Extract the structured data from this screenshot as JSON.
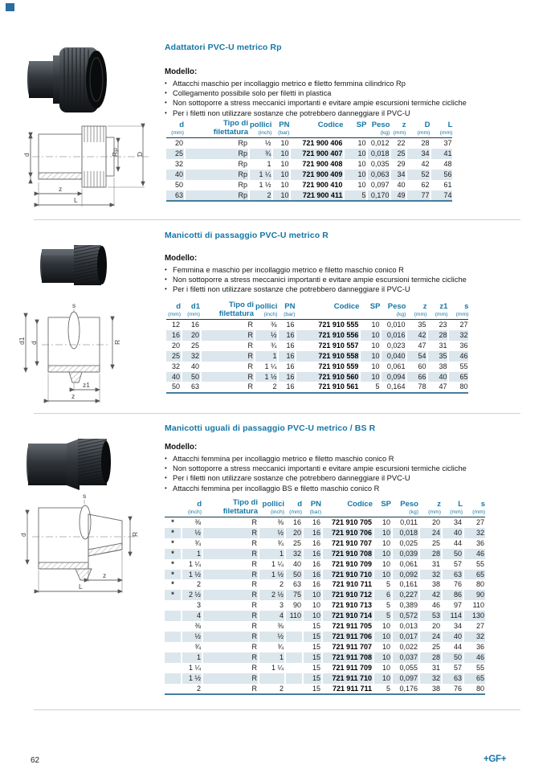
{
  "page": {
    "number": "62",
    "logo": "+GF+"
  },
  "colors": {
    "accent": "#1576a6",
    "shade": "#dce6ed",
    "rule-dark": "#16384c",
    "rule-bottom": "#447e9f",
    "divider": "#cfcfcf"
  },
  "sections": [
    {
      "title": "Adattatori PVC-U metrico Rp",
      "model_label": "Modello:",
      "bullets": [
        "Attacchi maschio per incollaggio metrico e filetto femmina cilindrico Rp",
        "Collegamento possibile solo per filetti in plastica",
        "Non sottoporre a stress meccanici importanti e evitare ampie escursioni termiche cicliche",
        "Per i filetti non utilizzare sostanze che potrebbero danneggiare il PVC-U"
      ],
      "drawing_labels": {
        "d": "d",
        "rp": "Rp",
        "D": "D",
        "z": "z",
        "L": "L"
      },
      "table": {
        "widths": [
          22,
          78,
          23,
          20,
          65,
          27,
          27,
          18,
          28,
          26
        ],
        "columns": [
          {
            "label": "d",
            "sub": "(mm)"
          },
          {
            "label": "Tipo di",
            "sub": "filettatura",
            "sub_bold": true
          },
          {
            "label": "pollici",
            "sub": "(inch)"
          },
          {
            "label": "PN",
            "sub": "(bar)"
          },
          {
            "label": "Codice",
            "bold": true
          },
          {
            "label": "SP"
          },
          {
            "label": "Peso",
            "sub": "(kg)"
          },
          {
            "label": "z",
            "sub": "(mm)"
          },
          {
            "label": "D",
            "sub": "(mm)"
          },
          {
            "label": "L",
            "sub": "(mm)"
          }
        ],
        "rows": [
          [
            "20",
            "Rp",
            "½",
            "10",
            "721 900 406",
            "10",
            "0,012",
            "22",
            "28",
            "37"
          ],
          [
            "25",
            "Rp",
            "¾",
            "10",
            "721 900 407",
            "10",
            "0,018",
            "25",
            "34",
            "41"
          ],
          [
            "32",
            "Rp",
            "1",
            "10",
            "721 900 408",
            "10",
            "0,035",
            "29",
            "42",
            "48"
          ],
          [
            "40",
            "Rp",
            "1 ¼",
            "10",
            "721 900 409",
            "10",
            "0,063",
            "34",
            "52",
            "56"
          ],
          [
            "50",
            "Rp",
            "1 ½",
            "10",
            "721 900 410",
            "10",
            "0,097",
            "40",
            "62",
            "61"
          ],
          [
            "63",
            "Rp",
            "2",
            "10",
            "721 900 411",
            "5",
            "0,170",
            "49",
            "77",
            "74"
          ]
        ]
      }
    },
    {
      "title": "Manicotti di passaggio PVC-U metrico R",
      "model_label": "Modello:",
      "bullets": [
        "Femmina e maschio per incollaggio metrico e filetto maschio conico R",
        "Non sottoporre a stress meccanici importanti e evitare ampie escursioni termiche cicliche",
        "Per i filetti non utilizzare sostanze che potrebbero danneggiare il PVC-U"
      ],
      "drawing_labels": {
        "s": "s",
        "d1": "d1",
        "d": "d",
        "R": "R",
        "z1": "z1",
        "z": "z"
      },
      "table": {
        "widths": [
          18,
          22,
          65,
          23,
          20,
          78,
          24,
          30,
          24,
          24,
          24
        ],
        "columns": [
          {
            "label": "d",
            "sub": "(mm)"
          },
          {
            "label": "d1",
            "sub": "(mm)"
          },
          {
            "label": "Tipo di",
            "sub": "filettatura",
            "sub_bold": true
          },
          {
            "label": "pollici",
            "sub": "(inch)"
          },
          {
            "label": "PN",
            "sub": "(bar)"
          },
          {
            "label": "Codice",
            "bold": true
          },
          {
            "label": "SP"
          },
          {
            "label": "Peso",
            "sub": "(kg)"
          },
          {
            "label": "z",
            "sub": "(mm)"
          },
          {
            "label": "z1",
            "sub": "(mm)"
          },
          {
            "label": "s",
            "sub": "(mm)"
          }
        ],
        "rows": [
          [
            "12",
            "16",
            "R",
            "⅜",
            "16",
            "721 910 555",
            "10",
            "0,010",
            "35",
            "23",
            "27"
          ],
          [
            "16",
            "20",
            "R",
            "½",
            "16",
            "721 910 556",
            "10",
            "0,016",
            "42",
            "28",
            "32"
          ],
          [
            "20",
            "25",
            "R",
            "¾",
            "16",
            "721 910 557",
            "10",
            "0,023",
            "47",
            "31",
            "36"
          ],
          [
            "25",
            "32",
            "R",
            "1",
            "16",
            "721 910 558",
            "10",
            "0,040",
            "54",
            "35",
            "46"
          ],
          [
            "32",
            "40",
            "R",
            "1 ¼",
            "16",
            "721 910 559",
            "10",
            "0,061",
            "60",
            "38",
            "55"
          ],
          [
            "40",
            "50",
            "R",
            "1 ½",
            "16",
            "721 910 560",
            "10",
            "0,094",
            "66",
            "40",
            "65"
          ],
          [
            "50",
            "63",
            "R",
            "2",
            "16",
            "721 910 561",
            "5",
            "0,164",
            "78",
            "47",
            "80"
          ]
        ]
      }
    },
    {
      "title": "Manicotti uguali di passaggio PVC-U metrico / BS R",
      "model_label": "Modello:",
      "bullets": [
        "Attacchi femmina per incollaggio metrico e filetto maschio conico R",
        "Non sottoporre a stress meccanici importanti e evitare ampie escursioni termiche cicliche",
        "Per i filetti non utilizzare sostanze che potrebbero danneggiare il PVC-U",
        "Attacchi femmina per incollaggio BS e filetto maschio conico R"
      ],
      "drawing_labels": {
        "s": "s",
        "d": "d",
        "R": "R",
        "z": "z",
        "L": "L"
      },
      "table": {
        "widths": [
          20,
          24,
          68,
          31,
          20,
          22,
          62,
          21,
          32,
          26,
          25,
          26
        ],
        "columns": [
          {
            "label": "",
            "sub": "",
            "mark": true
          },
          {
            "label": "d",
            "sub": "(inch)"
          },
          {
            "label": "Tipo di",
            "sub": "filettatura",
            "sub_bold": true
          },
          {
            "label": "pollici",
            "sub": "(inch)"
          },
          {
            "label": "d",
            "sub": "(mm)"
          },
          {
            "label": "PN",
            "sub": "(bar)"
          },
          {
            "label": "Codice",
            "bold": true
          },
          {
            "label": "SP"
          },
          {
            "label": "Peso",
            "sub": "(kg)"
          },
          {
            "label": "z",
            "sub": "(mm)"
          },
          {
            "label": "L",
            "sub": "(mm)"
          },
          {
            "label": "s",
            "sub": "(mm)"
          }
        ],
        "rows": [
          [
            "*",
            "⅜",
            "R",
            "⅜",
            "16",
            "16",
            "721 910 705",
            "10",
            "0,011",
            "20",
            "34",
            "27"
          ],
          [
            "*",
            "½",
            "R",
            "½",
            "20",
            "16",
            "721 910 706",
            "10",
            "0,018",
            "24",
            "40",
            "32"
          ],
          [
            "*",
            "¾",
            "R",
            "¾",
            "25",
            "16",
            "721 910 707",
            "10",
            "0,025",
            "25",
            "44",
            "36"
          ],
          [
            "*",
            "1",
            "R",
            "1",
            "32",
            "16",
            "721 910 708",
            "10",
            "0,039",
            "28",
            "50",
            "46"
          ],
          [
            "*",
            "1 ¼",
            "R",
            "1 ¼",
            "40",
            "16",
            "721 910 709",
            "10",
            "0,061",
            "31",
            "57",
            "55"
          ],
          [
            "*",
            "1 ½",
            "R",
            "1 ½",
            "50",
            "16",
            "721 910 710",
            "10",
            "0,092",
            "32",
            "63",
            "65"
          ],
          [
            "*",
            "2",
            "R",
            "2",
            "63",
            "16",
            "721 910 711",
            "5",
            "0,161",
            "38",
            "76",
            "80"
          ],
          [
            "*",
            "2 ½",
            "R",
            "2 ½",
            "75",
            "10",
            "721 910 712",
            "6",
            "0,227",
            "42",
            "86",
            "90"
          ],
          [
            "",
            "3",
            "R",
            "3",
            "90",
            "10",
            "721 910 713",
            "5",
            "0,389",
            "46",
            "97",
            "110"
          ],
          [
            "",
            "4",
            "R",
            "4",
            "110",
            "10",
            "721 910 714",
            "5",
            "0,572",
            "53",
            "114",
            "130"
          ],
          [
            "",
            "⅜",
            "R",
            "⅜",
            "",
            "15",
            "721 911 705",
            "10",
            "0,013",
            "20",
            "34",
            "27"
          ],
          [
            "",
            "½",
            "R",
            "½",
            "",
            "15",
            "721 911 706",
            "10",
            "0,017",
            "24",
            "40",
            "32"
          ],
          [
            "",
            "¾",
            "R",
            "¾",
            "",
            "15",
            "721 911 707",
            "10",
            "0,022",
            "25",
            "44",
            "36"
          ],
          [
            "",
            "1",
            "R",
            "1",
            "",
            "15",
            "721 911 708",
            "10",
            "0,037",
            "28",
            "50",
            "46"
          ],
          [
            "",
            "1 ¼",
            "R",
            "1 ¼",
            "",
            "15",
            "721 911 709",
            "10",
            "0,055",
            "31",
            "57",
            "55"
          ],
          [
            "",
            "1 ½",
            "R",
            "",
            "",
            "15",
            "721 911 710",
            "10",
            "0,097",
            "32",
            "63",
            "65"
          ],
          [
            "",
            "2",
            "R",
            "2",
            "",
            "15",
            "721 911 711",
            "5",
            "0,176",
            "38",
            "76",
            "80"
          ]
        ]
      }
    }
  ]
}
